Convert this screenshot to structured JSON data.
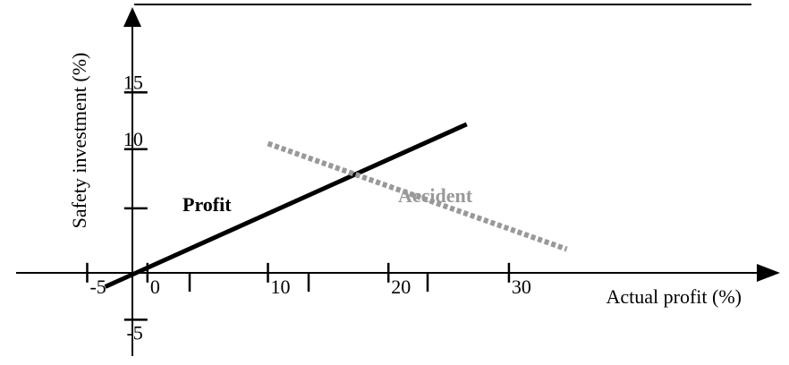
{
  "chart_data": {
    "type": "line",
    "xlabel": "Actual profit (%)",
    "ylabel": "Safety investment (%)",
    "x_ticks": [
      -5,
      0,
      10,
      20,
      30
    ],
    "y_ticks": [
      -5,
      10,
      15
    ],
    "xlim": [
      -10.9,
      52.5
    ],
    "ylim": [
      -8.2,
      22.5
    ],
    "series": [
      {
        "name": "Profit",
        "style": "solid",
        "color": "#000000",
        "points": [
          [
            -3.5,
            -2.1
          ],
          [
            26.5,
            12.2
          ]
        ]
      },
      {
        "name": "Accident",
        "style": "dotted",
        "color": "#999999",
        "points": [
          [
            10.0,
            10.5
          ],
          [
            34.8,
            1.2
          ]
        ]
      }
    ]
  },
  "colors": {
    "axis": "#000000",
    "profit": "#000000",
    "accident": "#999999"
  }
}
